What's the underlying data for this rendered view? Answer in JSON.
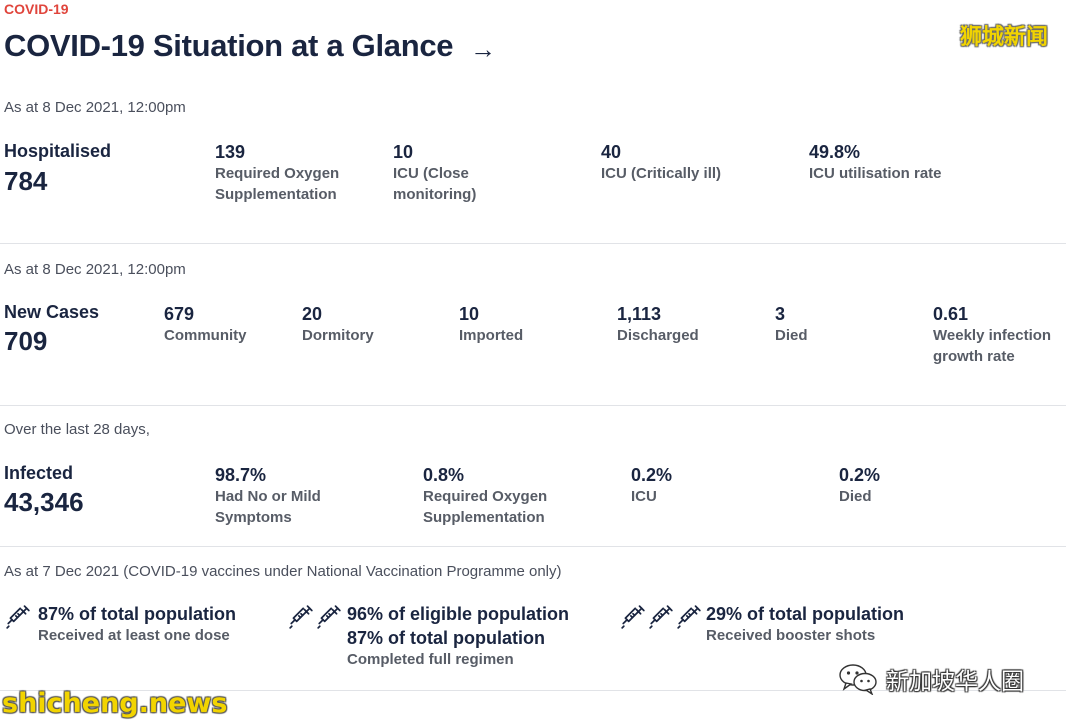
{
  "header": {
    "eyebrow": "COVID-19",
    "title": "COVID-19 Situation at a Glance",
    "arrow": "→"
  },
  "watermarks": {
    "top": "狮城新闻",
    "bottom": "shicheng.news",
    "wechat": "新加坡华人圈"
  },
  "hospitalised": {
    "asof": "As at 8 Dec 2021, 12:00pm",
    "label": "Hospitalised",
    "value": "784",
    "stats": [
      {
        "value": "139",
        "label": "Required Oxygen Supplementation"
      },
      {
        "value": "10",
        "label": "ICU (Close monitoring)"
      },
      {
        "value": "40",
        "label": "ICU (Critically ill)"
      },
      {
        "value": "49.8%",
        "label": "ICU utilisation rate"
      }
    ]
  },
  "new_cases": {
    "asof": "As at 8 Dec 2021, 12:00pm",
    "label": "New Cases",
    "value": "709",
    "stats": [
      {
        "value": "679",
        "label": "Community"
      },
      {
        "value": "20",
        "label": "Dormitory"
      },
      {
        "value": "10",
        "label": "Imported"
      },
      {
        "value": "1,113",
        "label": "Discharged"
      },
      {
        "value": "3",
        "label": "Died"
      },
      {
        "value": "0.61",
        "label": "Weekly infection growth rate"
      }
    ]
  },
  "infected": {
    "asof": "Over the last 28 days,",
    "label": "Infected",
    "value": "43,346",
    "stats": [
      {
        "value": "98.7%",
        "label": "Had No or Mild Symptoms"
      },
      {
        "value": "0.8%",
        "label": "Required Oxygen Supplementation"
      },
      {
        "value": "0.2%",
        "label": "ICU"
      },
      {
        "value": "0.2%",
        "label": "Died"
      }
    ]
  },
  "vaccination": {
    "asof": "As at 7 Dec 2021 (COVID-19 vaccines under National Vaccination Programme only)",
    "items": [
      {
        "icon": "syringe-icon",
        "heading": "87% of total population",
        "sub": "Received at least one dose"
      },
      {
        "icon": "syringe-icon",
        "heading": "96% of eligible population",
        "heading2": "87% of total population",
        "sub": "Completed full regimen"
      },
      {
        "icon": "syringe-icon",
        "heading": "29% of total population",
        "sub": "Received booster shots"
      }
    ]
  },
  "colors": {
    "accent": "#e0453c",
    "navy": "#1a2540",
    "muted": "#575c66",
    "watermark": "#f2d400"
  }
}
